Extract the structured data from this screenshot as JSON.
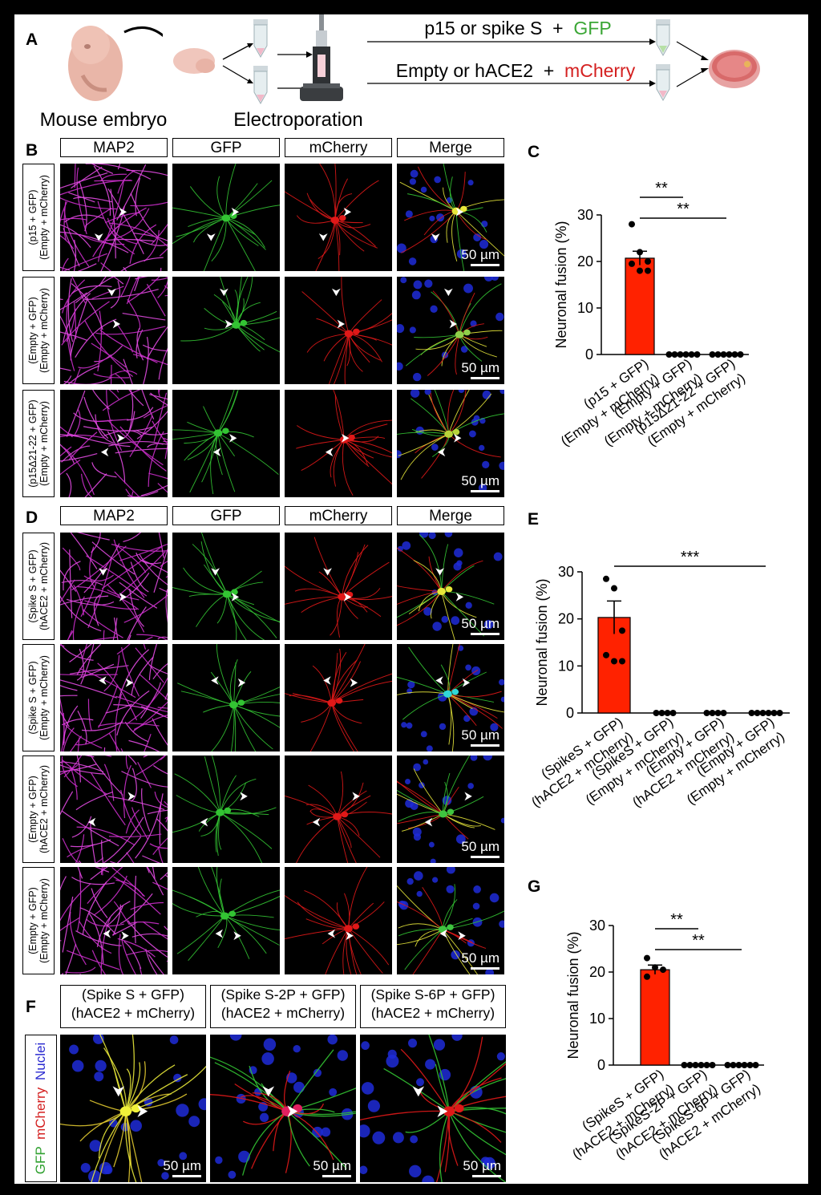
{
  "panelA": {
    "letter": "A",
    "embryo_label": "Mouse embryo",
    "electro_label": "Electroporation",
    "cond1_prefix": "p15 or spike S  +  ",
    "cond1_marker": "GFP",
    "cond2_prefix": "Empty or hACE2  +  ",
    "cond2_marker": "mCherry",
    "colors": {
      "gfp": "#3aa635",
      "mcherry": "#d42020"
    }
  },
  "panelB": {
    "letter": "B",
    "columns": [
      "MAP2",
      "GFP",
      "mCherry",
      "Merge"
    ],
    "rows": [
      {
        "line1": "(p15 + GFP)",
        "line2": "(Empty + mCherry)"
      },
      {
        "line1": "(Empty + GFP)",
        "line2": "(Empty + mCherry)"
      },
      {
        "line1": "(p15Δ21-22 + GFP)",
        "line2": "(Empty + mCherry)"
      }
    ],
    "scale_bar": "50 µm"
  },
  "panelD": {
    "letter": "D",
    "columns": [
      "MAP2",
      "GFP",
      "mCherry",
      "Merge"
    ],
    "rows": [
      {
        "line1": "(Spike S + GFP)",
        "line2": "(hACE2 + mCherry)"
      },
      {
        "line1": "(Spike S + GFP)",
        "line2": "(Empty + mCherry)"
      },
      {
        "line1": "(Empty + GFP)",
        "line2": "(hACE2 + mCherry)"
      },
      {
        "line1": "(Empty + GFP)",
        "line2": "(Empty + mCherry)"
      }
    ],
    "scale_bar": "50 µm"
  },
  "panelF": {
    "letter": "F",
    "columns": [
      {
        "line1": "(Spike S + GFP)",
        "line2": "(hACE2 + mCherry)"
      },
      {
        "line1": "(Spike S-2P + GFP)",
        "line2": "(hACE2 + mCherry)"
      },
      {
        "line1": "(Spike S-6P + GFP)",
        "line2": "(hACE2 + mCherry)"
      }
    ],
    "side_label": {
      "gfp": "GFP",
      "mcherry": "mCherry",
      "nuclei": "Nuclei"
    },
    "scale_bar": "50 µm"
  },
  "chart_data": [
    {
      "panel": "C",
      "type": "bar",
      "ylabel": "Neuronal fusion (%)",
      "ylim": [
        0,
        30
      ],
      "yticks": [
        0,
        10,
        20,
        30
      ],
      "categories": [
        {
          "line1": "(p15 + GFP)",
          "line2": "(Empty + mCherry)"
        },
        {
          "line1": "(Empty + GFP)",
          "line2": "(Empty + mCherry)"
        },
        {
          "line1": "(p15Δ21-22 + GFP)",
          "line2": "(Empty + mCherry)"
        }
      ],
      "values": [
        20.7,
        0,
        0
      ],
      "errors": [
        1.5,
        0,
        0
      ],
      "points": [
        [
          28,
          22,
          20,
          19.5,
          18,
          18
        ],
        [
          0,
          0,
          0,
          0,
          0,
          0
        ],
        [
          0,
          0,
          0,
          0,
          0,
          0
        ]
      ],
      "significance": [
        {
          "from": 0,
          "to": 1,
          "label": "**"
        },
        {
          "from": 0,
          "to": 2,
          "label": "**"
        }
      ],
      "bar_color": "#ff2200"
    },
    {
      "panel": "E",
      "type": "bar",
      "ylabel": "Neuronal fusion (%)",
      "ylim": [
        0,
        30
      ],
      "yticks": [
        0,
        10,
        20,
        30
      ],
      "categories": [
        {
          "line1": "(SpikeS + GFP)",
          "line2": "(hACE2 + mCherry)"
        },
        {
          "line1": "(SpikeS + GFP)",
          "line2": "(Empty + mCherry)"
        },
        {
          "line1": "(Empty + GFP)",
          "line2": "(hACE2 + mCherry)"
        },
        {
          "line1": "(Empty + GFP)",
          "line2": "(Empty + mCherry)"
        }
      ],
      "values": [
        20.3,
        0,
        0,
        0
      ],
      "errors": [
        3.5,
        0,
        0,
        0
      ],
      "points": [
        [
          28.5,
          26.5,
          17.5,
          12.3,
          11,
          11
        ],
        [
          0,
          0,
          0,
          0
        ],
        [
          0,
          0,
          0,
          0
        ],
        [
          0,
          0,
          0,
          0,
          0,
          0
        ]
      ],
      "significance": [
        {
          "from": 0,
          "to": 3,
          "label": "***"
        }
      ],
      "bar_color": "#ff2200"
    },
    {
      "panel": "G",
      "type": "bar",
      "ylabel": "Neuronal fusion (%)",
      "ylim": [
        0,
        30
      ],
      "yticks": [
        0,
        10,
        20,
        30
      ],
      "categories": [
        {
          "line1": "(SpikeS + GFP)",
          "line2": "(hACE2 + mCherry)"
        },
        {
          "line1": "(SpikeS-2P + GFP)",
          "line2": "(hACE2 + mCherry)"
        },
        {
          "line1": "(SpikeS-6P + GFP)",
          "line2": "(hACE2 + mCherry)"
        }
      ],
      "values": [
        20.5,
        0,
        0
      ],
      "errors": [
        1.0,
        0,
        0
      ],
      "points": [
        [
          23,
          21,
          20.5,
          19
        ],
        [
          0,
          0,
          0,
          0,
          0,
          0
        ],
        [
          0,
          0,
          0,
          0,
          0,
          0
        ]
      ],
      "significance": [
        {
          "from": 0,
          "to": 1,
          "label": "**"
        },
        {
          "from": 0,
          "to": 2,
          "label": "**"
        }
      ],
      "bar_color": "#ff2200"
    }
  ]
}
